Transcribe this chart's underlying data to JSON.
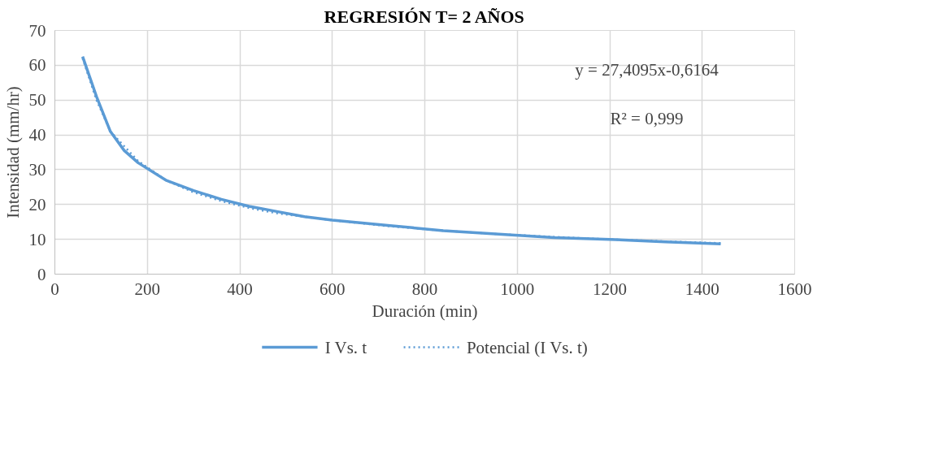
{
  "chart_data": {
    "type": "line",
    "title": "REGRESIÓN T= 2 AÑOS",
    "xlabel": "Duración (min)",
    "ylabel": "Intensidad (mm/hr)",
    "annotations": [
      "y = 27,4095x-0,6164",
      "R² = 0,999"
    ],
    "xlim": [
      0,
      1600
    ],
    "xticks": [
      0,
      200,
      400,
      600,
      800,
      1000,
      1200,
      1400,
      1600
    ],
    "ylim": [
      0,
      70
    ],
    "yticks": [
      0,
      10,
      20,
      30,
      40,
      50,
      60,
      70
    ],
    "grid": true,
    "legend": "bottom",
    "marker": "none",
    "series": [
      {
        "name": "I Vs. t",
        "color": "#5b9bd5",
        "line_style": "solid",
        "x": [
          60,
          90,
          120,
          150,
          180,
          240,
          300,
          360,
          420,
          480,
          540,
          600,
          720,
          840,
          960,
          1080,
          1200,
          1320,
          1440
        ],
        "values": [
          62.5,
          51,
          41,
          35.5,
          32,
          27,
          24,
          21.5,
          19.5,
          18,
          16.5,
          15.5,
          14,
          12.5,
          11.5,
          10.5,
          10,
          9.3,
          8.7
        ]
      },
      {
        "name": "Potencial (I Vs. t)",
        "color": "#5b9bd5",
        "line_style": "dotted",
        "x": [
          60,
          90,
          120,
          180,
          240,
          300,
          360,
          420,
          480,
          540,
          600,
          720,
          840,
          960,
          1080,
          1200,
          1320,
          1440
        ],
        "values": [
          62,
          50,
          41,
          32.5,
          27,
          23.5,
          21,
          19,
          17.5,
          16.5,
          15.5,
          13.8,
          12.5,
          11.5,
          10.7,
          10,
          9.4,
          8.9
        ]
      }
    ]
  }
}
